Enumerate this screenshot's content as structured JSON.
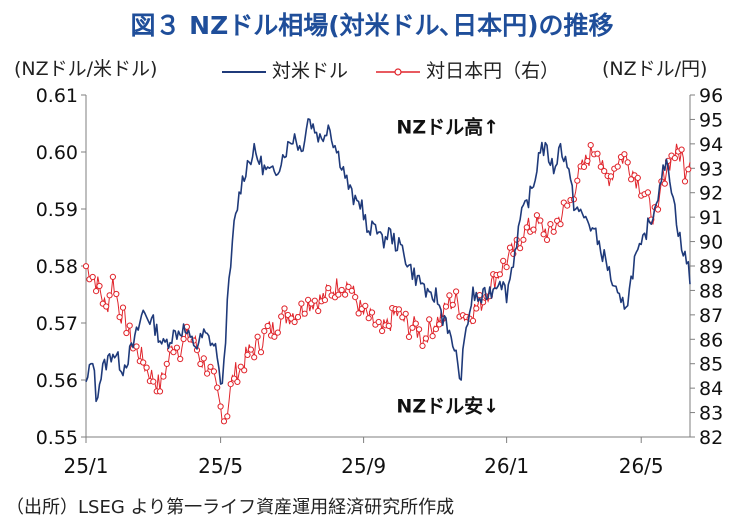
{
  "title": "図３ NZドル相場(対米ドル､日本円)の推移",
  "source": "（出所）LSEG より第一ライフ資産運用経済研究所作成",
  "colors": {
    "title": "#1F4E9A",
    "usd": "#1F3A7A",
    "jpy": "#E0242B",
    "axis": "#7F7F7F"
  },
  "chart_data": {
    "type": "line",
    "y_left_label": "(NZドル/米ドル)",
    "y_right_label": "(NZドル/円)",
    "x_tick_labels": [
      "25/1",
      "25/5",
      "25/9",
      "26/1",
      "26/5"
    ],
    "x_tick_index": [
      0,
      80,
      165,
      250,
      330
    ],
    "x_count": 360,
    "y_left": {
      "min": 0.55,
      "max": 0.61,
      "ticks": [
        0.55,
        0.56,
        0.57,
        0.58,
        0.59,
        0.6,
        0.61
      ]
    },
    "y_right": {
      "min": 82,
      "max": 96,
      "ticks": [
        82,
        83,
        84,
        85,
        86,
        87,
        88,
        89,
        90,
        91,
        92,
        93,
        94,
        95,
        96
      ]
    },
    "annotations": [
      {
        "text": "NZドル高↑",
        "x_index": 215,
        "y_left": 0.6045
      },
      {
        "text": "NZドル安↓",
        "x_index": 215,
        "y_left": 0.5555
      }
    ],
    "series": [
      {
        "name": "対米ドル",
        "axis": "left",
        "marker": "none",
        "anchors": [
          [
            0,
            0.559
          ],
          [
            4,
            0.564
          ],
          [
            6,
            0.557
          ],
          [
            10,
            0.562
          ],
          [
            16,
            0.565
          ],
          [
            22,
            0.562
          ],
          [
            28,
            0.566
          ],
          [
            34,
            0.572
          ],
          [
            40,
            0.57
          ],
          [
            46,
            0.566
          ],
          [
            52,
            0.568
          ],
          [
            58,
            0.569
          ],
          [
            62,
            0.567
          ],
          [
            66,
            0.566
          ],
          [
            70,
            0.568
          ],
          [
            74,
            0.567
          ],
          [
            78,
            0.565
          ],
          [
            80,
            0.558
          ],
          [
            82,
            0.563
          ],
          [
            84,
            0.573
          ],
          [
            88,
            0.587
          ],
          [
            92,
            0.594
          ],
          [
            96,
            0.598
          ],
          [
            100,
            0.6
          ],
          [
            106,
            0.597
          ],
          [
            112,
            0.596
          ],
          [
            118,
            0.6
          ],
          [
            124,
            0.603
          ],
          [
            128,
            0.6
          ],
          [
            132,
            0.606
          ],
          [
            136,
            0.604
          ],
          [
            140,
            0.602
          ],
          [
            144,
            0.605
          ],
          [
            148,
            0.601
          ],
          [
            152,
            0.598
          ],
          [
            156,
            0.594
          ],
          [
            160,
            0.591
          ],
          [
            164,
            0.591
          ],
          [
            168,
            0.585
          ],
          [
            172,
            0.588
          ],
          [
            176,
            0.584
          ],
          [
            180,
            0.586
          ],
          [
            184,
            0.584
          ],
          [
            188,
            0.583
          ],
          [
            192,
            0.58
          ],
          [
            196,
            0.578
          ],
          [
            200,
            0.577
          ],
          [
            204,
            0.574
          ],
          [
            208,
            0.575
          ],
          [
            212,
            0.571
          ],
          [
            214,
            0.571
          ],
          [
            216,
            0.568
          ],
          [
            218,
            0.565
          ],
          [
            220,
            0.566
          ],
          [
            222,
            0.559
          ],
          [
            224,
            0.564
          ],
          [
            226,
            0.569
          ],
          [
            230,
            0.575
          ],
          [
            234,
            0.574
          ],
          [
            238,
            0.575
          ],
          [
            242,
            0.576
          ],
          [
            246,
            0.578
          ],
          [
            250,
            0.575
          ],
          [
            254,
            0.581
          ],
          [
            258,
            0.588
          ],
          [
            262,
            0.591
          ],
          [
            266,
            0.594
          ],
          [
            270,
            0.601
          ],
          [
            274,
            0.6
          ],
          [
            278,
            0.597
          ],
          [
            282,
            0.601
          ],
          [
            286,
            0.598
          ],
          [
            290,
            0.591
          ],
          [
            294,
            0.589
          ],
          [
            298,
            0.588
          ],
          [
            302,
            0.586
          ],
          [
            306,
            0.583
          ],
          [
            310,
            0.58
          ],
          [
            314,
            0.576
          ],
          [
            318,
            0.573
          ],
          [
            322,
            0.574
          ],
          [
            326,
            0.581
          ],
          [
            330,
            0.583
          ],
          [
            334,
            0.587
          ],
          [
            338,
            0.59
          ],
          [
            342,
            0.596
          ],
          [
            346,
            0.598
          ],
          [
            350,
            0.59
          ],
          [
            354,
            0.583
          ],
          [
            358,
            0.58
          ],
          [
            359,
            0.578
          ]
        ]
      },
      {
        "name": "対日本円（右）",
        "axis": "right",
        "marker": "circle",
        "anchors": [
          [
            0,
            89.0
          ],
          [
            4,
            88.6
          ],
          [
            8,
            88.1
          ],
          [
            12,
            87.2
          ],
          [
            16,
            88.4
          ],
          [
            20,
            87.2
          ],
          [
            24,
            86.6
          ],
          [
            28,
            85.7
          ],
          [
            32,
            85.4
          ],
          [
            36,
            84.8
          ],
          [
            40,
            84.4
          ],
          [
            44,
            84.1
          ],
          [
            48,
            84.9
          ],
          [
            52,
            85.8
          ],
          [
            56,
            85.6
          ],
          [
            60,
            86.1
          ],
          [
            64,
            86.0
          ],
          [
            68,
            85.2
          ],
          [
            72,
            84.8
          ],
          [
            76,
            84.3
          ],
          [
            78,
            83.8
          ],
          [
            80,
            83.2
          ],
          [
            82,
            82.8
          ],
          [
            84,
            83.1
          ],
          [
            86,
            84.0
          ],
          [
            88,
            84.6
          ],
          [
            92,
            84.8
          ],
          [
            96,
            85.4
          ],
          [
            100,
            85.6
          ],
          [
            104,
            85.9
          ],
          [
            108,
            86.4
          ],
          [
            112,
            86.4
          ],
          [
            116,
            86.9
          ],
          [
            120,
            87.0
          ],
          [
            124,
            87.1
          ],
          [
            128,
            87.2
          ],
          [
            132,
            87.5
          ],
          [
            136,
            87.6
          ],
          [
            140,
            87.6
          ],
          [
            144,
            87.9
          ],
          [
            148,
            88.1
          ],
          [
            152,
            88.3
          ],
          [
            156,
            88.2
          ],
          [
            160,
            87.7
          ],
          [
            164,
            87.1
          ],
          [
            168,
            86.9
          ],
          [
            172,
            86.6
          ],
          [
            176,
            86.3
          ],
          [
            180,
            86.6
          ],
          [
            184,
            87.1
          ],
          [
            188,
            86.9
          ],
          [
            192,
            86.5
          ],
          [
            196,
            86.5
          ],
          [
            200,
            86.0
          ],
          [
            204,
            86.4
          ],
          [
            208,
            86.7
          ],
          [
            212,
            87.0
          ],
          [
            216,
            87.5
          ],
          [
            220,
            87.6
          ],
          [
            224,
            87.0
          ],
          [
            228,
            87.0
          ],
          [
            232,
            87.3
          ],
          [
            236,
            87.6
          ],
          [
            240,
            88.1
          ],
          [
            244,
            88.6
          ],
          [
            248,
            89.0
          ],
          [
            252,
            89.4
          ],
          [
            256,
            89.8
          ],
          [
            260,
            90.4
          ],
          [
            264,
            90.6
          ],
          [
            268,
            90.7
          ],
          [
            272,
            90.5
          ],
          [
            276,
            90.3
          ],
          [
            280,
            90.8
          ],
          [
            284,
            91.3
          ],
          [
            288,
            91.6
          ],
          [
            292,
            92.6
          ],
          [
            296,
            93.1
          ],
          [
            300,
            93.6
          ],
          [
            304,
            94.0
          ],
          [
            306,
            93.2
          ],
          [
            308,
            92.6
          ],
          [
            312,
            92.7
          ],
          [
            316,
            93.3
          ],
          [
            320,
            93.5
          ],
          [
            324,
            93.0
          ],
          [
            328,
            92.5
          ],
          [
            332,
            92.0
          ],
          [
            336,
            91.2
          ],
          [
            340,
            91.0
          ],
          [
            342,
            92.4
          ],
          [
            346,
            93.2
          ],
          [
            350,
            93.6
          ],
          [
            354,
            93.6
          ],
          [
            356,
            92.9
          ],
          [
            358,
            93.3
          ],
          [
            359,
            93.4
          ]
        ]
      }
    ]
  }
}
